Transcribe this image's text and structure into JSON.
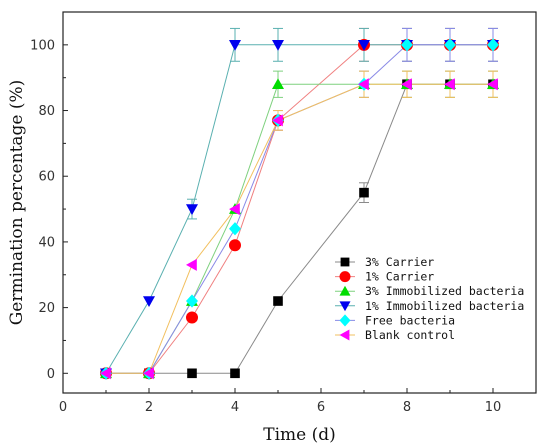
{
  "chart_data": {
    "type": "line",
    "xlabel": "Time (d)",
    "ylabel": "Germination percentage (%)",
    "xlim": [
      0,
      11
    ],
    "ylim": [
      -6,
      110
    ],
    "xticks": [
      "0",
      "2",
      "4",
      "6",
      "8",
      "10"
    ],
    "yticks": [
      "0",
      "20",
      "40",
      "60",
      "80",
      "100"
    ],
    "grid": false,
    "legend_position": "lower-right",
    "series": [
      {
        "name": "3% Carrier",
        "marker": "square",
        "color": "#000000",
        "line_color": "#8a8a8a",
        "points": [
          [
            1,
            0
          ],
          [
            2,
            0
          ],
          [
            3,
            0
          ],
          [
            4,
            0
          ],
          [
            5,
            22
          ],
          [
            7,
            55
          ],
          [
            8,
            88
          ],
          [
            9,
            88
          ],
          [
            10,
            88
          ]
        ],
        "errors": [
          0,
          0,
          0,
          0,
          0,
          3,
          4,
          4,
          4
        ]
      },
      {
        "name": "1% Carrier",
        "marker": "circle",
        "color": "#ff0000",
        "line_color": "#f08080",
        "points": [
          [
            1,
            0
          ],
          [
            2,
            0
          ],
          [
            3,
            17
          ],
          [
            4,
            39
          ],
          [
            5,
            77
          ],
          [
            7,
            100
          ],
          [
            8,
            100
          ],
          [
            9,
            100
          ],
          [
            10,
            100
          ]
        ],
        "errors": [
          0,
          0,
          0,
          0,
          3,
          5,
          5,
          5,
          5
        ]
      },
      {
        "name": "3% Immobilized bacteria",
        "marker": "triangle-up",
        "color": "#00dd00",
        "line_color": "#7fd17f",
        "points": [
          [
            1,
            0
          ],
          [
            2,
            0
          ],
          [
            3,
            22
          ],
          [
            4,
            50
          ],
          [
            5,
            88
          ],
          [
            7,
            88
          ],
          [
            8,
            88
          ],
          [
            9,
            88
          ],
          [
            10,
            88
          ]
        ],
        "errors": [
          0,
          0,
          0,
          0,
          4,
          4,
          4,
          4,
          4
        ]
      },
      {
        "name": "1% Immobilized bacteria",
        "marker": "triangle-down",
        "color": "#0000ee",
        "line_color": "#5ab0b0",
        "points": [
          [
            1,
            0
          ],
          [
            2,
            22
          ],
          [
            3,
            50
          ],
          [
            4,
            100
          ],
          [
            5,
            100
          ],
          [
            7,
            100
          ],
          [
            8,
            100
          ],
          [
            9,
            100
          ],
          [
            10,
            100
          ]
        ],
        "errors": [
          0,
          0,
          3,
          5,
          5,
          5,
          5,
          5,
          5
        ]
      },
      {
        "name": "Free bacteria",
        "marker": "diamond",
        "color": "#00ffff",
        "line_color": "#8a8ae6",
        "points": [
          [
            1,
            0
          ],
          [
            2,
            0
          ],
          [
            3,
            22
          ],
          [
            4,
            44
          ],
          [
            5,
            77
          ],
          [
            7,
            88
          ],
          [
            8,
            100
          ],
          [
            9,
            100
          ],
          [
            10,
            100
          ]
        ],
        "errors": [
          0,
          0,
          0,
          0,
          3,
          4,
          5,
          5,
          5
        ]
      },
      {
        "name": "Blank control",
        "marker": "triangle-left",
        "color": "#ff00ff",
        "line_color": "#f2c060",
        "points": [
          [
            1,
            0
          ],
          [
            2,
            0
          ],
          [
            3,
            33
          ],
          [
            4,
            50
          ],
          [
            5,
            77
          ],
          [
            7,
            88
          ],
          [
            8,
            88
          ],
          [
            9,
            88
          ],
          [
            10,
            88
          ]
        ],
        "errors": [
          0,
          0,
          0,
          0,
          3,
          4,
          4,
          4,
          4
        ]
      }
    ]
  }
}
